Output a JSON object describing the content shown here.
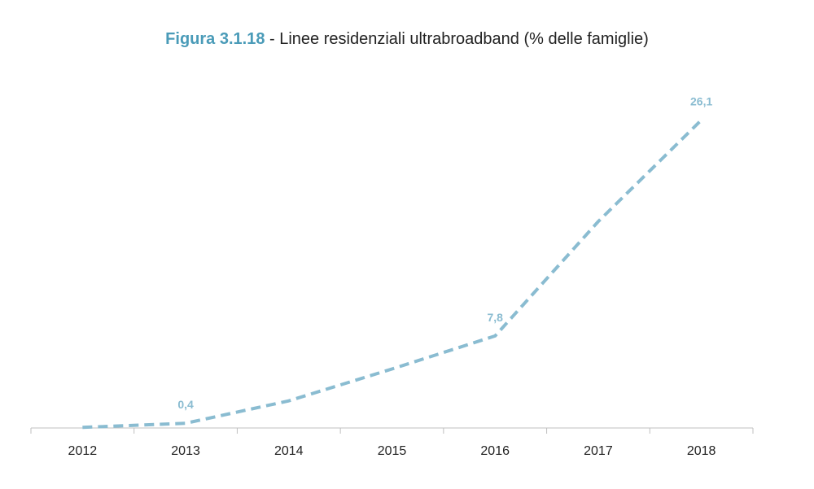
{
  "title": {
    "figure": "Figura 3.1.18",
    "separator": " - ",
    "text": "Linee residenziali ultrabroadband (% delle famiglie)"
  },
  "colors": {
    "series": "#8ABCD1",
    "figure_label": "#4A9BB8",
    "axis": "#BFBFBF",
    "text": "#222222"
  },
  "chart_data": {
    "type": "line",
    "categories": [
      "2012",
      "2013",
      "2014",
      "2015",
      "2016",
      "2017",
      "2018"
    ],
    "series": [
      {
        "values": [
          0.05,
          0.4,
          2.3,
          5.0,
          7.8,
          17.5,
          26.1
        ],
        "data_labels": [
          {
            "index": 1,
            "text": "0,4"
          },
          {
            "index": 4,
            "text": "7,8"
          },
          {
            "index": 6,
            "text": "26,1"
          }
        ],
        "line_style": "dashed"
      }
    ],
    "ylim": [
      0,
      30
    ],
    "grid": false,
    "legend": "none",
    "xlabel": "",
    "ylabel": ""
  }
}
